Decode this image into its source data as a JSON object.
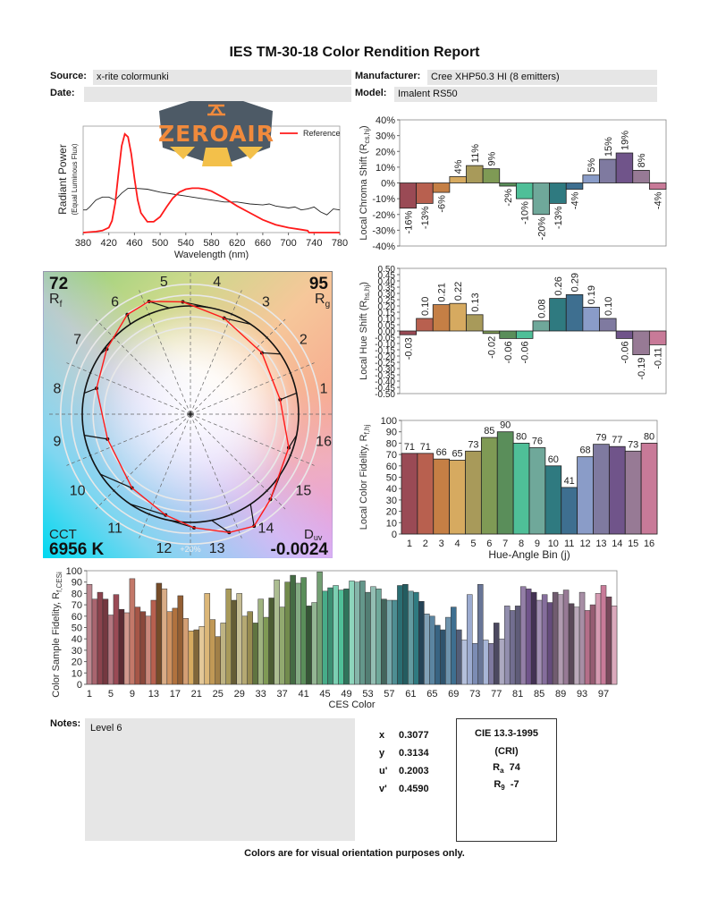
{
  "title": "IES TM-30-18 Color Rendition Report",
  "fields": {
    "source_label": "Source:",
    "source_value": "x-rite colormunki",
    "manufacturer_label": "Manufacturer:",
    "manufacturer_value": "Cree XHP50.3 HI (8 emitters)",
    "date_label": "Date:",
    "date_value": "",
    "model_label": "Model:",
    "model_value": "Imalent RS50"
  },
  "logo": {
    "text": "ZEROAIR",
    "colors": {
      "bg": "#4d5a66",
      "text": "#f08a3c",
      "rays": "#f3c04a"
    }
  },
  "vector_graphic": {
    "rf_value": "72",
    "rf_label": "R",
    "rf_sub": "f",
    "rg_value": "95",
    "rg_label": "R",
    "rg_sub": "g",
    "cct_label": "CCT",
    "cct_value": "6956 K",
    "duv_label": "D",
    "duv_sub": "uv",
    "duv_value": "-0.0024",
    "ring_label": "+20%",
    "bin_labels": [
      "1",
      "2",
      "3",
      "4",
      "5",
      "6",
      "7",
      "8",
      "9",
      "10",
      "11",
      "12",
      "13",
      "14",
      "15",
      "16"
    ]
  },
  "notes": {
    "label": "Notes:",
    "value": "Level 6"
  },
  "chromaticity": [
    {
      "label": "x",
      "value": "0.3077"
    },
    {
      "label": "y",
      "value": "0.3134"
    },
    {
      "label": "u'",
      "value": "0.2003"
    },
    {
      "label": "v'",
      "value": "0.4590"
    }
  ],
  "cri": {
    "title": "CIE 13.3-1995",
    "subtitle": "(CRI)",
    "ra_label": "R",
    "ra_sub": "a",
    "ra_value": "74",
    "r9_label": "R",
    "r9_sub": "9",
    "r9_value": "-7"
  },
  "footer": "Colors are for visual orientation purposes only.",
  "bin_colors": [
    "#9a4a55",
    "#b8604f",
    "#c57f45",
    "#d6aa60",
    "#a89a5a",
    "#7f9a55",
    "#5a8e5a",
    "#4fbf98",
    "#6fa89a",
    "#2f7a80",
    "#3e6f90",
    "#8a9cc8",
    "#7f7aa0",
    "#70548a",
    "#977a95",
    "#c87a98"
  ],
  "chart_data": [
    {
      "type": "line",
      "xlabel": "Wavelength (nm)",
      "ylabel": "Radiant Power",
      "ylabel2": "(Equal Luminous Flux)",
      "xlim": [
        380,
        780
      ],
      "ylim": [
        0,
        1.08
      ],
      "xticks": [
        "380",
        "420",
        "460",
        "500",
        "540",
        "580",
        "620",
        "660",
        "700",
        "740",
        "780"
      ],
      "legend": {
        "position": "top-right",
        "entries": [
          {
            "name": "Reference",
            "color": "#ff1a1a"
          }
        ]
      },
      "series": [
        {
          "name": "Reference",
          "color": "#ff1a1a",
          "x": [
            380,
            400,
            410,
            420,
            425,
            430,
            435,
            440,
            445,
            450,
            455,
            460,
            465,
            470,
            480,
            490,
            500,
            510,
            520,
            530,
            540,
            550,
            560,
            570,
            580,
            600,
            620,
            640,
            660,
            680,
            700,
            720,
            730,
            732,
            780
          ],
          "y": [
            0,
            0.01,
            0.02,
            0.05,
            0.12,
            0.3,
            0.6,
            0.88,
            1.0,
            0.97,
            0.8,
            0.55,
            0.33,
            0.2,
            0.11,
            0.11,
            0.16,
            0.26,
            0.35,
            0.41,
            0.44,
            0.45,
            0.45,
            0.44,
            0.42,
            0.35,
            0.27,
            0.2,
            0.13,
            0.08,
            0.05,
            0.03,
            0.02,
            0,
            0
          ]
        },
        {
          "color": "#222222",
          "x": [
            380,
            385,
            390,
            400,
            410,
            420,
            430,
            440,
            450,
            460,
            480,
            500,
            520,
            540,
            560,
            580,
            600,
            620,
            640,
            660,
            670,
            680,
            700,
            710,
            720,
            730,
            740,
            750,
            760,
            770,
            780
          ],
          "y": [
            0.23,
            0.23,
            0.26,
            0.33,
            0.36,
            0.36,
            0.33,
            0.4,
            0.45,
            0.45,
            0.44,
            0.41,
            0.39,
            0.37,
            0.35,
            0.33,
            0.31,
            0.31,
            0.29,
            0.28,
            0.29,
            0.27,
            0.25,
            0.26,
            0.23,
            0.24,
            0.26,
            0.21,
            0.18,
            0.24,
            0.23
          ]
        }
      ]
    },
    {
      "type": "bar",
      "ylabel": "Local Chroma Shift (R",
      "ylabel_sub": "cs,hj",
      "ylabel_end": ")",
      "ylim": [
        -40,
        40
      ],
      "yticks": [
        "40%",
        "30%",
        "20%",
        "10%",
        "0%",
        "-10%",
        "-20%",
        "-30%",
        "-40%"
      ],
      "categories": [
        "1",
        "2",
        "3",
        "4",
        "5",
        "6",
        "7",
        "8",
        "9",
        "10",
        "11",
        "12",
        "13",
        "14",
        "15",
        "16"
      ],
      "values": [
        -16,
        -13,
        -6,
        4,
        11,
        9,
        -2,
        -10,
        -20,
        -13,
        -4,
        5,
        15,
        19,
        8,
        -4
      ],
      "labels": [
        "-16%",
        "-13%",
        "-6%",
        "4%",
        "11%",
        "9%",
        "-2%",
        "-10%",
        "-20%",
        "-13%",
        "-4%",
        "5%",
        "15%",
        "19%",
        "8%",
        "-4%"
      ]
    },
    {
      "type": "bar",
      "ylabel": "Local Hue Shift (R",
      "ylabel_sub": "hs,hj",
      "ylabel_end": ")",
      "ylim": [
        -0.5,
        0.5
      ],
      "yticks": [
        "0.50",
        "0.45",
        "0.40",
        "0.35",
        "0.30",
        "0.25",
        "0.20",
        "0.15",
        "0.10",
        "0.05",
        "0.00",
        "-0.05",
        "-0.10",
        "-0.15",
        "-0.20",
        "-0.25",
        "-0.30",
        "-0.35",
        "-0.40",
        "-0.45",
        "-0.50"
      ],
      "categories": [
        "1",
        "2",
        "3",
        "4",
        "5",
        "6",
        "7",
        "8",
        "9",
        "10",
        "11",
        "12",
        "13",
        "14",
        "15",
        "16"
      ],
      "values": [
        -0.03,
        0.1,
        0.21,
        0.22,
        0.13,
        -0.02,
        -0.06,
        -0.06,
        0.08,
        0.26,
        0.29,
        0.19,
        0.1,
        -0.06,
        -0.19,
        -0.11
      ],
      "labels": [
        "-0.03",
        "0.10",
        "0.21",
        "0.22",
        "0.13",
        "-0.02",
        "-0.06",
        "-0.06",
        "0.08",
        "0.26",
        "0.29",
        "0.19",
        "0.10",
        "-0.06",
        "-0.19",
        "-0.11"
      ]
    },
    {
      "type": "bar",
      "xlabel": "Hue-Angle Bin (j)",
      "ylabel": "Local Color Fidelity, R",
      "ylabel_sub": "f,hj",
      "ylabel_end": "",
      "ylim": [
        0,
        100
      ],
      "yticks": [
        "100",
        "90",
        "80",
        "70",
        "60",
        "50",
        "40",
        "30",
        "20",
        "10",
        "0"
      ],
      "categories": [
        "1",
        "2",
        "3",
        "4",
        "5",
        "6",
        "7",
        "8",
        "9",
        "10",
        "11",
        "12",
        "13",
        "14",
        "15",
        "16"
      ],
      "values": [
        71,
        71,
        66,
        65,
        73,
        85,
        90,
        80,
        76,
        60,
        41,
        68,
        79,
        77,
        73,
        80
      ],
      "labels": [
        "71",
        "71",
        "66",
        "65",
        "73",
        "85",
        "90",
        "80",
        "76",
        "60",
        "41",
        "68",
        "79",
        "77",
        "73",
        "80"
      ]
    },
    {
      "type": "bar",
      "xlabel": "CES Color",
      "ylabel": "Color Sample Fidelity, R",
      "ylabel_sub": "f,CESi",
      "ylabel_end": "",
      "ylim": [
        0,
        100
      ],
      "yticks": [
        "100",
        "90",
        "80",
        "70",
        "60",
        "50",
        "40",
        "30",
        "20",
        "10",
        "0"
      ],
      "xticks": [
        "1",
        "5",
        "9",
        "13",
        "17",
        "21",
        "25",
        "29",
        "33",
        "37",
        "41",
        "45",
        "49",
        "53",
        "57",
        "61",
        "65",
        "69",
        "73",
        "77",
        "81",
        "85",
        "89",
        "93",
        "97"
      ],
      "values": [
        88,
        75,
        81,
        75,
        61,
        79,
        66,
        63,
        93,
        68,
        64,
        60,
        74,
        89,
        84,
        64,
        67,
        78,
        58,
        47,
        48,
        51,
        80,
        57,
        42,
        54,
        84,
        74,
        80,
        60,
        64,
        54,
        75,
        59,
        76,
        92,
        68,
        90,
        96,
        89,
        94,
        69,
        72,
        99,
        82,
        85,
        87,
        83,
        84,
        91,
        90,
        91,
        81,
        86,
        84,
        75,
        74,
        74,
        87,
        88,
        82,
        81,
        73,
        62,
        60,
        52,
        48,
        59,
        68,
        48,
        39,
        79,
        36,
        88,
        39,
        36,
        54,
        40,
        69,
        65,
        69,
        86,
        84,
        81,
        74,
        79,
        72,
        81,
        79,
        83,
        71,
        68,
        81,
        65,
        70,
        80,
        87,
        77,
        69
      ]
    }
  ]
}
